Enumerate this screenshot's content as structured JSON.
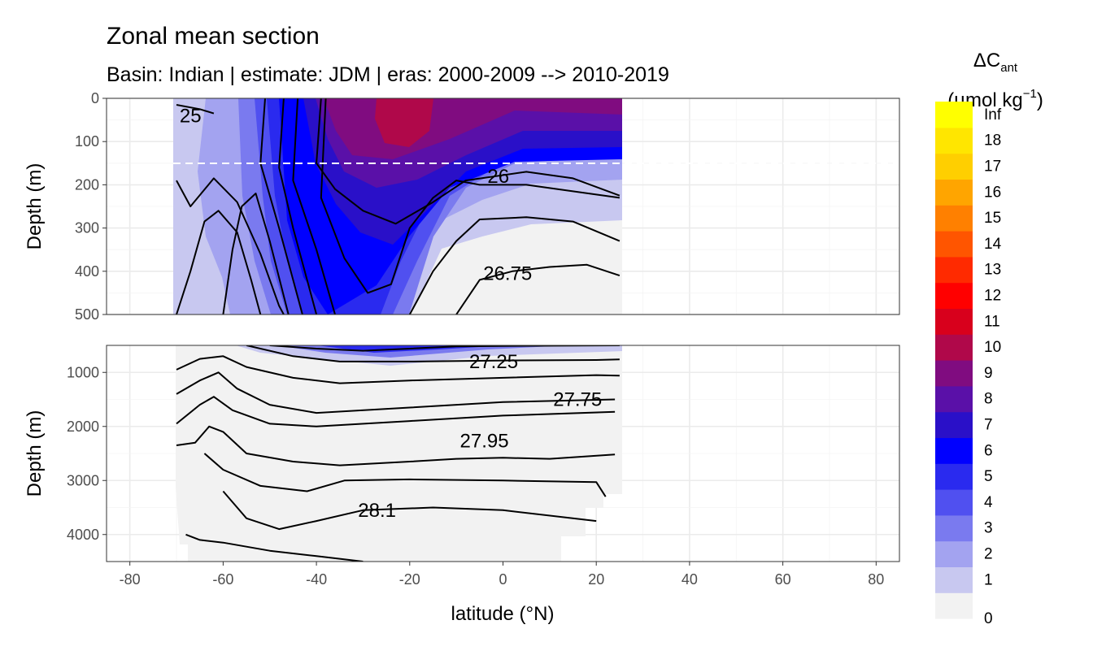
{
  "chart_data": {
    "type": "heatmap",
    "title": "Zonal mean section",
    "subtitle": "Basin: Indian | estimate: JDM  | eras: 2000-2009 --> 2010-2019",
    "xlabel": "latitude (°N)",
    "ylabel": "Depth (m)",
    "xlim": [
      -85,
      85
    ],
    "x_ticks": [
      "-80",
      "-60",
      "-40",
      "-20",
      "0",
      "20",
      "40",
      "60",
      "80"
    ],
    "data_lat_range": [
      -70,
      25
    ],
    "panels": [
      {
        "name": "upper",
        "ylim": [
          0,
          500
        ],
        "y_ticks": [
          "0",
          "100",
          "200",
          "300",
          "400",
          "500"
        ],
        "reference_depth_dashed": 150
      },
      {
        "name": "lower",
        "ylim": [
          500,
          4500
        ],
        "y_ticks": [
          "1000",
          "2000",
          "3000",
          "4000"
        ]
      }
    ],
    "legend": {
      "title_prefix": "ΔC",
      "title_sub": "ant",
      "unit_prefix": "(µmol kg",
      "unit_sup": "−1",
      "unit_suffix": ")",
      "position": "right",
      "bin_labels": [
        "0",
        "1",
        "2",
        "3",
        "4",
        "5",
        "6",
        "7",
        "8",
        "9",
        "10",
        "11",
        "12",
        "13",
        "14",
        "15",
        "16",
        "17",
        "18",
        "Inf"
      ],
      "bin_colors": [
        "#f2f2f2",
        "#c8c8f0",
        "#a3a3f0",
        "#7a7aef",
        "#5050f0",
        "#2a2aef",
        "#0000ff",
        "#2a10c8",
        "#5a10a8",
        "#800c80",
        "#b0084a",
        "#d8001c",
        "#ff0000",
        "#ff2a00",
        "#ff5500",
        "#ff8000",
        "#ffa500",
        "#ffcf00",
        "#ffe600",
        "#ffff00"
      ]
    },
    "isopycnal_labels": [
      {
        "text": "25",
        "lat": -67,
        "depth": 40
      },
      {
        "text": "26",
        "lat": -1,
        "depth": 180
      },
      {
        "text": "26.75",
        "lat": 1,
        "depth": 405
      },
      {
        "text": "27.25",
        "lat": -2,
        "depth": 800
      },
      {
        "text": "27.75",
        "lat": 16,
        "depth": 1500
      },
      {
        "text": "27.95",
        "lat": -4,
        "depth": 2270
      },
      {
        "text": "28.1",
        "lat": -27,
        "depth": 3550
      }
    ],
    "isopycnals_upper": [
      {
        "name": "25",
        "points": [
          [
            -70,
            15
          ],
          [
            -65,
            25
          ],
          [
            -62,
            35
          ]
        ]
      },
      {
        "name": "26",
        "points": [
          [
            -70,
            190
          ],
          [
            -67,
            250
          ],
          [
            -62,
            185
          ],
          [
            -57,
            240
          ],
          [
            -52,
            360
          ],
          [
            -48,
            480
          ],
          [
            -47,
            500
          ]
        ]
      },
      {
        "name": "isopycnal-u3",
        "points": [
          [
            -70,
            500
          ],
          [
            -67,
            400
          ],
          [
            -64,
            285
          ],
          [
            -61,
            260
          ],
          [
            -57,
            310
          ],
          [
            -54,
            420
          ],
          [
            -52,
            500
          ]
        ]
      },
      {
        "name": "isopycnal-u4",
        "points": [
          [
            -60,
            500
          ],
          [
            -58,
            350
          ],
          [
            -56,
            250
          ],
          [
            -53,
            220
          ],
          [
            -50,
            330
          ],
          [
            -46,
            500
          ]
        ]
      },
      {
        "name": "isopycnal-u5",
        "points": [
          [
            -51,
            0
          ],
          [
            -52,
            150
          ],
          [
            -48,
            300
          ],
          [
            -43,
            500
          ]
        ]
      },
      {
        "name": "isopycnal-u6",
        "points": [
          [
            -47,
            0
          ],
          [
            -48,
            160
          ],
          [
            -45,
            300
          ],
          [
            -40,
            500
          ]
        ]
      },
      {
        "name": "isopycnal-u7",
        "points": [
          [
            -44,
            0
          ],
          [
            -45,
            190
          ],
          [
            -40,
            350
          ],
          [
            -36,
            500
          ]
        ]
      },
      {
        "name": "isopycnal-u8",
        "points": [
          [
            -38,
            0
          ],
          [
            -39,
            230
          ],
          [
            -34,
            370
          ],
          [
            -29,
            450
          ],
          [
            -24,
            430
          ],
          [
            -20,
            300
          ],
          [
            -15,
            230
          ],
          [
            -10,
            190
          ],
          [
            -5,
            200
          ],
          [
            5,
            200
          ],
          [
            15,
            215
          ],
          [
            25,
            230
          ]
        ]
      },
      {
        "name": "isopycnal-u9",
        "points": [
          [
            -39,
            0
          ],
          [
            -40,
            150
          ],
          [
            -36,
            210
          ],
          [
            -30,
            260
          ],
          [
            -23,
            290
          ],
          [
            -15,
            240
          ],
          [
            -8,
            190
          ],
          [
            5,
            170
          ],
          [
            15,
            185
          ],
          [
            25,
            225
          ]
        ]
      },
      {
        "name": "isopycnal-u10",
        "points": [
          [
            -20,
            500
          ],
          [
            -15,
            400
          ],
          [
            -10,
            330
          ],
          [
            -5,
            280
          ],
          [
            5,
            275
          ],
          [
            15,
            285
          ],
          [
            25,
            330
          ]
        ]
      },
      {
        "name": "26.75",
        "points": [
          [
            -10,
            500
          ],
          [
            -5,
            420
          ],
          [
            2,
            400
          ],
          [
            10,
            390
          ],
          [
            18,
            385
          ],
          [
            25,
            410
          ]
        ]
      }
    ],
    "isopycnals_lower": [
      {
        "name": "27.25",
        "points": [
          [
            -50,
            500
          ],
          [
            -40,
            560
          ],
          [
            -30,
            600
          ],
          [
            -20,
            560
          ],
          [
            -10,
            520
          ],
          [
            0,
            510
          ],
          [
            25,
            500
          ]
        ]
      },
      {
        "name": "isopycnal-l2",
        "points": [
          [
            -55,
            500
          ],
          [
            -45,
            700
          ],
          [
            -35,
            800
          ],
          [
            -20,
            800
          ],
          [
            0,
            780
          ],
          [
            20,
            770
          ],
          [
            25,
            760
          ]
        ]
      },
      {
        "name": "isopycnal-l3",
        "points": [
          [
            -70,
            950
          ],
          [
            -65,
            750
          ],
          [
            -60,
            700
          ],
          [
            -55,
            900
          ],
          [
            -45,
            1100
          ],
          [
            -35,
            1200
          ],
          [
            -20,
            1150
          ],
          [
            0,
            1100
          ],
          [
            20,
            1050
          ],
          [
            25,
            1060
          ]
        ]
      },
      {
        "name": "27.75",
        "points": [
          [
            -70,
            1400
          ],
          [
            -65,
            1150
          ],
          [
            -61,
            1000
          ],
          [
            -57,
            1300
          ],
          [
            -50,
            1600
          ],
          [
            -40,
            1750
          ],
          [
            -20,
            1650
          ],
          [
            0,
            1550
          ],
          [
            24,
            1500
          ]
        ]
      },
      {
        "name": "isopycnal-l5",
        "points": [
          [
            -70,
            1950
          ],
          [
            -65,
            1600
          ],
          [
            -62,
            1450
          ],
          [
            -58,
            1700
          ],
          [
            -50,
            1950
          ],
          [
            -40,
            2000
          ],
          [
            -20,
            1900
          ],
          [
            0,
            1800
          ],
          [
            24,
            1730
          ]
        ]
      },
      {
        "name": "27.95",
        "points": [
          [
            -70,
            2350
          ],
          [
            -66,
            2300
          ],
          [
            -63,
            2000
          ],
          [
            -60,
            2100
          ],
          [
            -55,
            2500
          ],
          [
            -45,
            2650
          ],
          [
            -35,
            2720
          ],
          [
            -20,
            2650
          ],
          [
            -10,
            2600
          ],
          [
            0,
            2580
          ],
          [
            10,
            2600
          ],
          [
            24,
            2520
          ]
        ]
      },
      {
        "name": "isopycnal-l7",
        "points": [
          [
            -64,
            2500
          ],
          [
            -60,
            2800
          ],
          [
            -52,
            3100
          ],
          [
            -42,
            3200
          ],
          [
            -34,
            3000
          ],
          [
            -20,
            2980
          ],
          [
            0,
            3000
          ],
          [
            20,
            3030
          ],
          [
            22,
            3300
          ]
        ]
      },
      {
        "name": "28.1",
        "points": [
          [
            -60,
            3200
          ],
          [
            -55,
            3700
          ],
          [
            -48,
            3900
          ],
          [
            -40,
            3750
          ],
          [
            -30,
            3550
          ],
          [
            -15,
            3500
          ],
          [
            0,
            3550
          ],
          [
            20,
            3750
          ]
        ]
      },
      {
        "name": "isopycnal-l9",
        "points": [
          [
            -68,
            4000
          ],
          [
            -65,
            4100
          ],
          [
            -60,
            4150
          ],
          [
            -50,
            4300
          ],
          [
            -40,
            4400
          ],
          [
            -30,
            4500
          ]
        ]
      }
    ]
  }
}
